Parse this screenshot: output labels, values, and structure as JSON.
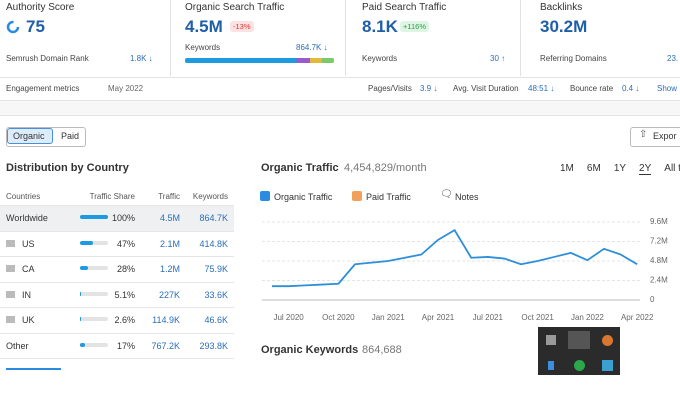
{
  "metrics": [
    {
      "label": "Authority Score",
      "value": "75",
      "sub_label": "Semrush Domain Rank",
      "sub_value": "1.8K ↓"
    },
    {
      "label": "Organic Search Traffic",
      "value": "4.5M",
      "badge": "-13%",
      "sub_label": "Keywords",
      "sub_value": "864.7K ↓"
    },
    {
      "label": "Paid Search Traffic",
      "value": "8.1K",
      "badge": "+116%",
      "sub_label": "Keywords",
      "sub_value": "30 ↑"
    },
    {
      "label": "Backlinks",
      "value": "30.2M",
      "sub_label": "Referring Domains",
      "sub_value": "23."
    }
  ],
  "engagement": {
    "label": "Engagement metrics",
    "date": "May 2022",
    "items": [
      {
        "label": "Pages/Visits",
        "value": "3.9 ↓"
      },
      {
        "label": "Avg. Visit Duration",
        "value": "48:51 ↓"
      },
      {
        "label": "Bounce rate",
        "value": "0.4 ↓"
      }
    ],
    "more": "Show"
  },
  "tabs": [
    "Organic",
    "Paid"
  ],
  "export": "Expor",
  "distribution": {
    "title": "Distribution by Country",
    "columns": [
      "Countries",
      "Traffic Share",
      "Traffic",
      "Keywords"
    ],
    "rows": [
      {
        "country": "Worldwide",
        "share": 100,
        "share_label": "100%",
        "traffic": "4.5M",
        "keywords": "864.7K"
      },
      {
        "country": "US",
        "share": 47,
        "share_label": "47%",
        "traffic": "2.1M",
        "keywords": "414.8K"
      },
      {
        "country": "CA",
        "share": 28,
        "share_label": "28%",
        "traffic": "1.2M",
        "keywords": "75.9K"
      },
      {
        "country": "IN",
        "share": 5.1,
        "share_label": "5.1%",
        "traffic": "227K",
        "keywords": "33.6K"
      },
      {
        "country": "UK",
        "share": 2.6,
        "share_label": "2.6%",
        "traffic": "114.9K",
        "keywords": "46.6K"
      },
      {
        "country": "Other",
        "share": 17,
        "share_label": "17%",
        "traffic": "767.2K",
        "keywords": "293.8K"
      }
    ]
  },
  "chart_data": {
    "type": "line",
    "title": "Organic Traffic",
    "subtitle": "4,454,829/month",
    "ranges": [
      "1M",
      "6M",
      "1Y",
      "2Y",
      "All tim"
    ],
    "other_legend": "Paid Traffic",
    "notes": "Notes",
    "categories": [
      null,
      "Jul 2020",
      null,
      null,
      "Oct 2020",
      null,
      null,
      "Jan 2021",
      null,
      null,
      "Apr 2021",
      null,
      null,
      "Jul 2021",
      null,
      null,
      "Oct 2021",
      null,
      null,
      "Jan 2022",
      null,
      null,
      "Apr 2022"
    ],
    "series": [
      {
        "name": "Organic Traffic",
        "color": "#2d8fd9",
        "values": [
          1700000,
          1700000,
          1800000,
          1900000,
          2000000,
          4400000,
          4600000,
          4800000,
          5200000,
          5600000,
          7400000,
          8600000,
          5200000,
          5300000,
          5100000,
          4400000,
          4800000,
          5300000,
          5800000,
          4900000,
          6300000,
          5600000,
          4400000
        ]
      }
    ],
    "ylim": [
      0,
      9600000
    ],
    "yticks": [
      0,
      {
        "value": 2400000,
        "label": "2.4M"
      },
      {
        "value": 4800000,
        "label": "4.8M"
      },
      {
        "value": 7200000,
        "label": "7.2M"
      },
      {
        "value": 9600000,
        "label": "9.6M"
      }
    ],
    "grid": true,
    "y_axis_side": "right"
  },
  "keywords": {
    "title": "Organic Keywords",
    "value": "864,688"
  }
}
